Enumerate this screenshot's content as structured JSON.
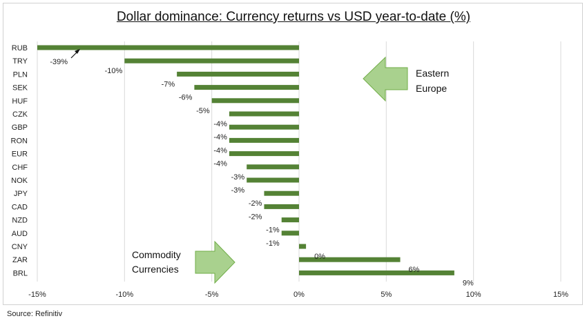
{
  "chart_data": {
    "type": "bar",
    "orientation": "horizontal",
    "title": "Dollar dominance: Currency returns vs USD year-to-date (%)",
    "source": "Source: Refinitiv",
    "xlim": [
      -15,
      15
    ],
    "xticks": [
      -15,
      -10,
      -5,
      0,
      5,
      10,
      15
    ],
    "xtick_labels": [
      "-15%",
      "-10%",
      "-5%",
      "0%",
      "5%",
      "10%",
      "15%"
    ],
    "grid": true,
    "bar_color": "#548235",
    "categories": [
      "RUB",
      "TRY",
      "PLN",
      "SEK",
      "HUF",
      "CZK",
      "GBP",
      "RON",
      "EUR",
      "CHF",
      "NOK",
      "JPY",
      "CAD",
      "NZD",
      "AUD",
      "CNY",
      "ZAR",
      "BRL"
    ],
    "values": [
      -39,
      -10,
      -7,
      -6,
      -5,
      -4,
      -4,
      -4,
      -4,
      -3,
      -3,
      -2,
      -2,
      -1,
      -1,
      0.4,
      5.8,
      8.9
    ],
    "value_labels": [
      "-39%",
      "-10%",
      "-7%",
      "-6%",
      "-5%",
      "-4%",
      "-4%",
      "-4%",
      "-4%",
      "-3%",
      "-3%",
      "-2%",
      "-2%",
      "-1%",
      "-1%",
      "0%",
      "6%",
      "9%"
    ],
    "annotations": {
      "eastern_europe": [
        "Eastern",
        "Europe"
      ],
      "commodity": [
        "Commodity",
        "Currencies"
      ],
      "arrow_color": "#a9d18e",
      "arrow_border": "#70ad47"
    }
  }
}
